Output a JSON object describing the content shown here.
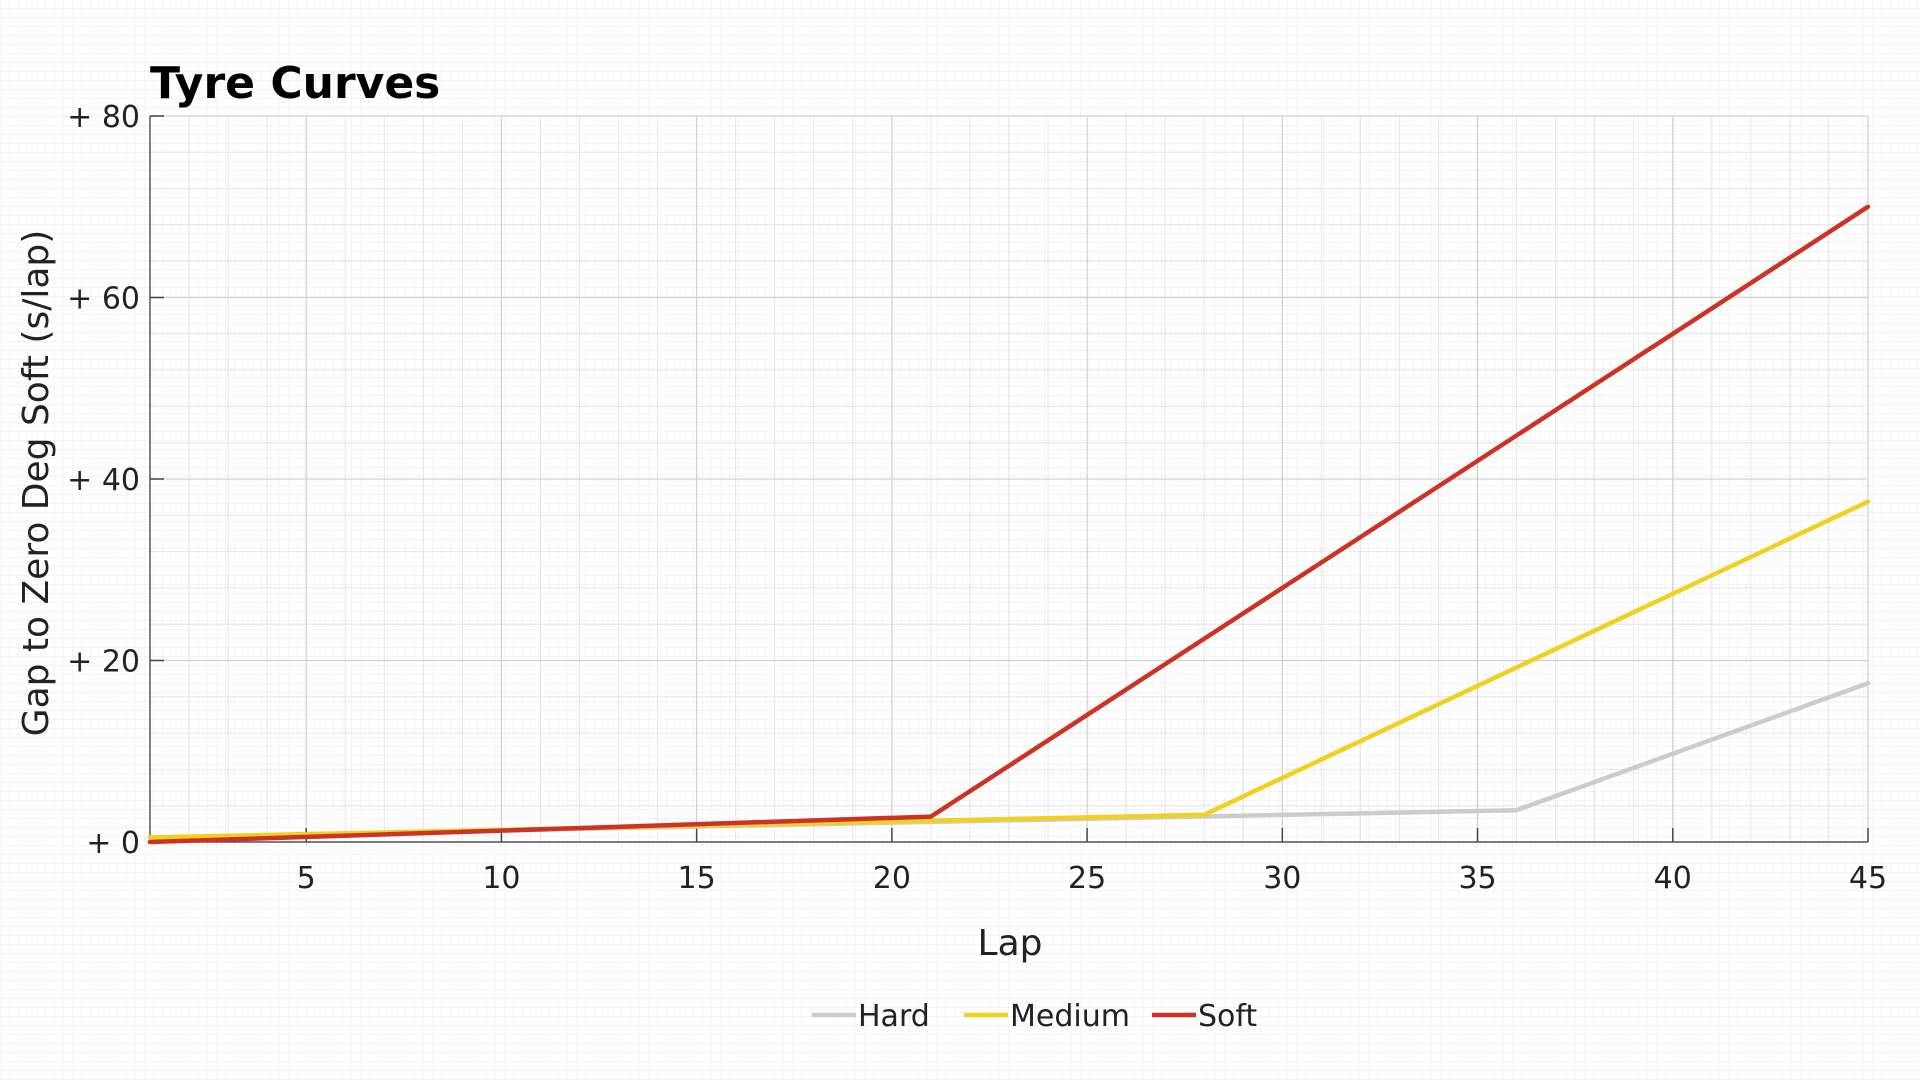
{
  "chart_data": {
    "type": "line",
    "title": "Tyre Curves",
    "xlabel": "Lap",
    "ylabel": "Gap to Zero Deg Soft (s/lap)",
    "xlim": [
      1,
      45
    ],
    "ylim": [
      0,
      80
    ],
    "x_ticks": [
      5,
      10,
      15,
      20,
      25,
      30,
      35,
      40,
      45
    ],
    "x_tick_labels": [
      "5",
      "10",
      "15",
      "20",
      "25",
      "30",
      "35",
      "40",
      "45"
    ],
    "y_ticks": [
      0,
      20,
      40,
      60,
      80
    ],
    "y_tick_labels": [
      "+ 0",
      "+ 20",
      "+ 40",
      "+ 60",
      "+ 80"
    ],
    "grid": true,
    "legend_position": "bottom-center",
    "series": [
      {
        "name": "Hard",
        "color": "#cccccc",
        "x": [
          1,
          36,
          45
        ],
        "y": [
          0.5,
          3.5,
          17.5
        ]
      },
      {
        "name": "Medium",
        "color": "#f2d01f",
        "x": [
          1,
          28,
          45
        ],
        "y": [
          0.5,
          3.0,
          37.5
        ]
      },
      {
        "name": "Soft",
        "color": "#cc3326",
        "x": [
          1,
          21,
          45
        ],
        "y": [
          0.0,
          2.8,
          70.0
        ]
      }
    ]
  }
}
